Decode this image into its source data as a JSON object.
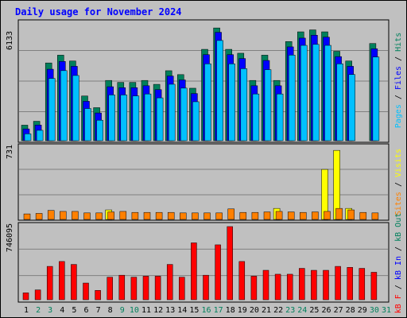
{
  "chart_data": [
    {
      "type": "bar",
      "title": "Daily usage for November 2024",
      "categories": [
        "1",
        "2",
        "3",
        "4",
        "5",
        "6",
        "7",
        "8",
        "9",
        "10",
        "11",
        "12",
        "13",
        "14",
        "15",
        "16",
        "17",
        "18",
        "19",
        "20",
        "21",
        "22",
        "23",
        "24",
        "25",
        "26",
        "27",
        "28",
        "29",
        "30",
        "31"
      ],
      "weekend_days": [
        "2",
        "3",
        "9",
        "10",
        "16",
        "17",
        "23",
        "24",
        "30",
        "31"
      ],
      "ylim": [
        0,
        6133
      ],
      "max_label": "6133",
      "series": [
        {
          "name": "Hits",
          "color": "#00805c",
          "values": [
            800,
            1000,
            4000,
            4400,
            4100,
            2300,
            1700,
            3100,
            3000,
            3000,
            3100,
            2900,
            3600,
            3400,
            2700,
            4700,
            5800,
            4700,
            4500,
            3100,
            4400,
            3100,
            5100,
            5600,
            5700,
            5600,
            4600,
            4100,
            0,
            5000,
            0
          ]
        },
        {
          "name": "Files",
          "color": "#0000ff",
          "values": [
            730,
            930,
            3800,
            4200,
            3950,
            2150,
            1550,
            2900,
            2850,
            2850,
            2950,
            2750,
            3450,
            3250,
            2550,
            4550,
            5700,
            4550,
            4350,
            2950,
            4250,
            2950,
            4950,
            5400,
            5550,
            5450,
            4450,
            3950,
            0,
            4850,
            0
          ]
        },
        {
          "name": "Pages",
          "color": "#00c0ff",
          "values": [
            600,
            780,
            3450,
            3850,
            3600,
            1900,
            1300,
            2600,
            2600,
            2550,
            2650,
            2450,
            3150,
            2950,
            2250,
            4200,
            5400,
            4200,
            3950,
            2650,
            3900,
            2650,
            4650,
            5150,
            5200,
            5150,
            4200,
            3650,
            0,
            4550,
            0
          ]
        }
      ]
    },
    {
      "type": "bar",
      "ylim": [
        0,
        731
      ],
      "max_label": "731",
      "series": [
        {
          "name": "Visits",
          "color": "#ffff00",
          "values": [
            0,
            0,
            0,
            0,
            0,
            0,
            0,
            95,
            0,
            0,
            0,
            0,
            0,
            0,
            0,
            0,
            0,
            0,
            0,
            0,
            0,
            110,
            0,
            0,
            0,
            500,
            690,
            110,
            0,
            0,
            0
          ]
        },
        {
          "name": "Sites",
          "color": "#ff8000",
          "values": [
            55,
            60,
            90,
            80,
            80,
            65,
            65,
            75,
            80,
            70,
            70,
            70,
            70,
            65,
            65,
            65,
            65,
            105,
            70,
            70,
            75,
            80,
            75,
            70,
            75,
            80,
            110,
            95,
            70,
            65,
            0
          ]
        }
      ]
    },
    {
      "type": "bar",
      "ylim": [
        0,
        746095
      ],
      "max_label": "746095",
      "series": [
        {
          "name": "kB F",
          "color": "#ff0000",
          "values": [
            0,
            0,
            0,
            0,
            0,
            0,
            0,
            0,
            0,
            0,
            0,
            0,
            0,
            0,
            0,
            0,
            0,
            0,
            0,
            0,
            0,
            0,
            0,
            0,
            0,
            0,
            0,
            0,
            0,
            0,
            0
          ]
        },
        {
          "name": "kB In",
          "color": "#0000ff",
          "values": [
            0,
            0,
            0,
            0,
            0,
            0,
            0,
            0,
            0,
            0,
            0,
            0,
            0,
            0,
            0,
            0,
            0,
            0,
            0,
            0,
            0,
            0,
            0,
            0,
            0,
            0,
            0,
            0,
            0,
            0,
            0
          ]
        },
        {
          "name": "kB Out",
          "color": "#00805c",
          "values": [
            0,
            0,
            0,
            0,
            0,
            0,
            0,
            0,
            0,
            0,
            0,
            0,
            0,
            0,
            0,
            0,
            0,
            0,
            0,
            0,
            0,
            0,
            0,
            0,
            0,
            0,
            0,
            0,
            0,
            0,
            0
          ]
        },
        {
          "name": "kB F value",
          "color": "#ff0000",
          "values": [
            70000,
            100000,
            340000,
            390000,
            360000,
            170000,
            95000,
            230000,
            250000,
            230000,
            240000,
            240000,
            360000,
            230000,
            580000,
            250000,
            560000,
            746095,
            390000,
            240000,
            300000,
            260000,
            260000,
            320000,
            300000,
            300000,
            340000,
            330000,
            320000,
            280000,
            0
          ]
        }
      ]
    }
  ],
  "legend": {
    "top": [
      "Hits",
      "/",
      "Files",
      "/",
      "Pages"
    ],
    "middle": [
      "Visits",
      "/",
      "Sites"
    ],
    "bottom": [
      "kB Out",
      "/",
      "kB In",
      "/",
      "kB F"
    ]
  },
  "colors": {
    "background": "#c0c0c0",
    "plot": "#c0c0c0",
    "title": "#0000ff",
    "weekday_label": "#000000",
    "weekend_label": "#00805c",
    "gridline": "#808080"
  }
}
